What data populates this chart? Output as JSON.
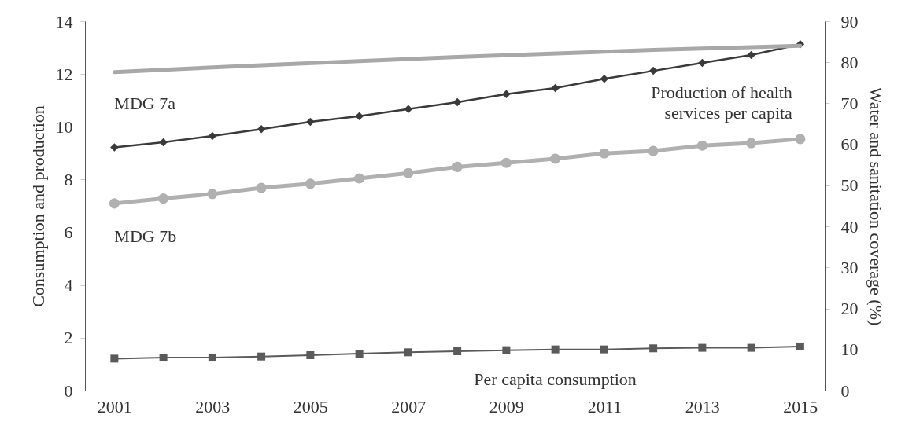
{
  "chart_data": {
    "type": "line",
    "ylabel": "Consumption and production",
    "y2label": "Water and sanitation coverage (%)",
    "x": [
      2001,
      2002,
      2003,
      2004,
      2005,
      2006,
      2007,
      2008,
      2009,
      2010,
      2011,
      2012,
      2013,
      2014,
      2015
    ],
    "xlim": [
      2000.4,
      2015.5
    ],
    "xticks": [
      2001,
      2003,
      2005,
      2007,
      2009,
      2011,
      2013,
      2015
    ],
    "ylim": [
      0,
      14
    ],
    "yticks": [
      0,
      2,
      4,
      6,
      8,
      10,
      12,
      14
    ],
    "y2lim": [
      0,
      90
    ],
    "y2ticks": [
      0,
      10,
      20,
      30,
      40,
      50,
      60,
      70,
      80,
      90
    ],
    "grid": false,
    "series": [
      {
        "name": "MDG 7a",
        "color": "#a8a8a8",
        "axis": "y2",
        "marker": "none",
        "x": [
          2001,
          2004,
          2008,
          2012,
          2015
        ],
        "values": [
          77.6,
          79.3,
          81.3,
          83.0,
          84.0
        ]
      },
      {
        "name": "Production of health services per capita",
        "color": "#3a3a3a",
        "marker": "diamond",
        "values": [
          9.22,
          9.41,
          9.65,
          9.91,
          10.19,
          10.4,
          10.67,
          10.93,
          11.24,
          11.47,
          11.82,
          12.12,
          12.42,
          12.72,
          13.13
        ]
      },
      {
        "name": "MDG 7b",
        "color": "#b0b0b0",
        "axis": "y2",
        "marker": "circle",
        "values": [
          45.6,
          46.8,
          47.9,
          49.4,
          50.4,
          51.7,
          53.0,
          54.5,
          55.5,
          56.5,
          57.8,
          58.4,
          59.7,
          60.3,
          61.3
        ]
      },
      {
        "name": "Per capita consumption",
        "color": "#5a5a5a",
        "marker": "square",
        "values": [
          1.21,
          1.25,
          1.25,
          1.29,
          1.34,
          1.4,
          1.45,
          1.49,
          1.53,
          1.56,
          1.56,
          1.6,
          1.62,
          1.62,
          1.67
        ]
      }
    ]
  }
}
